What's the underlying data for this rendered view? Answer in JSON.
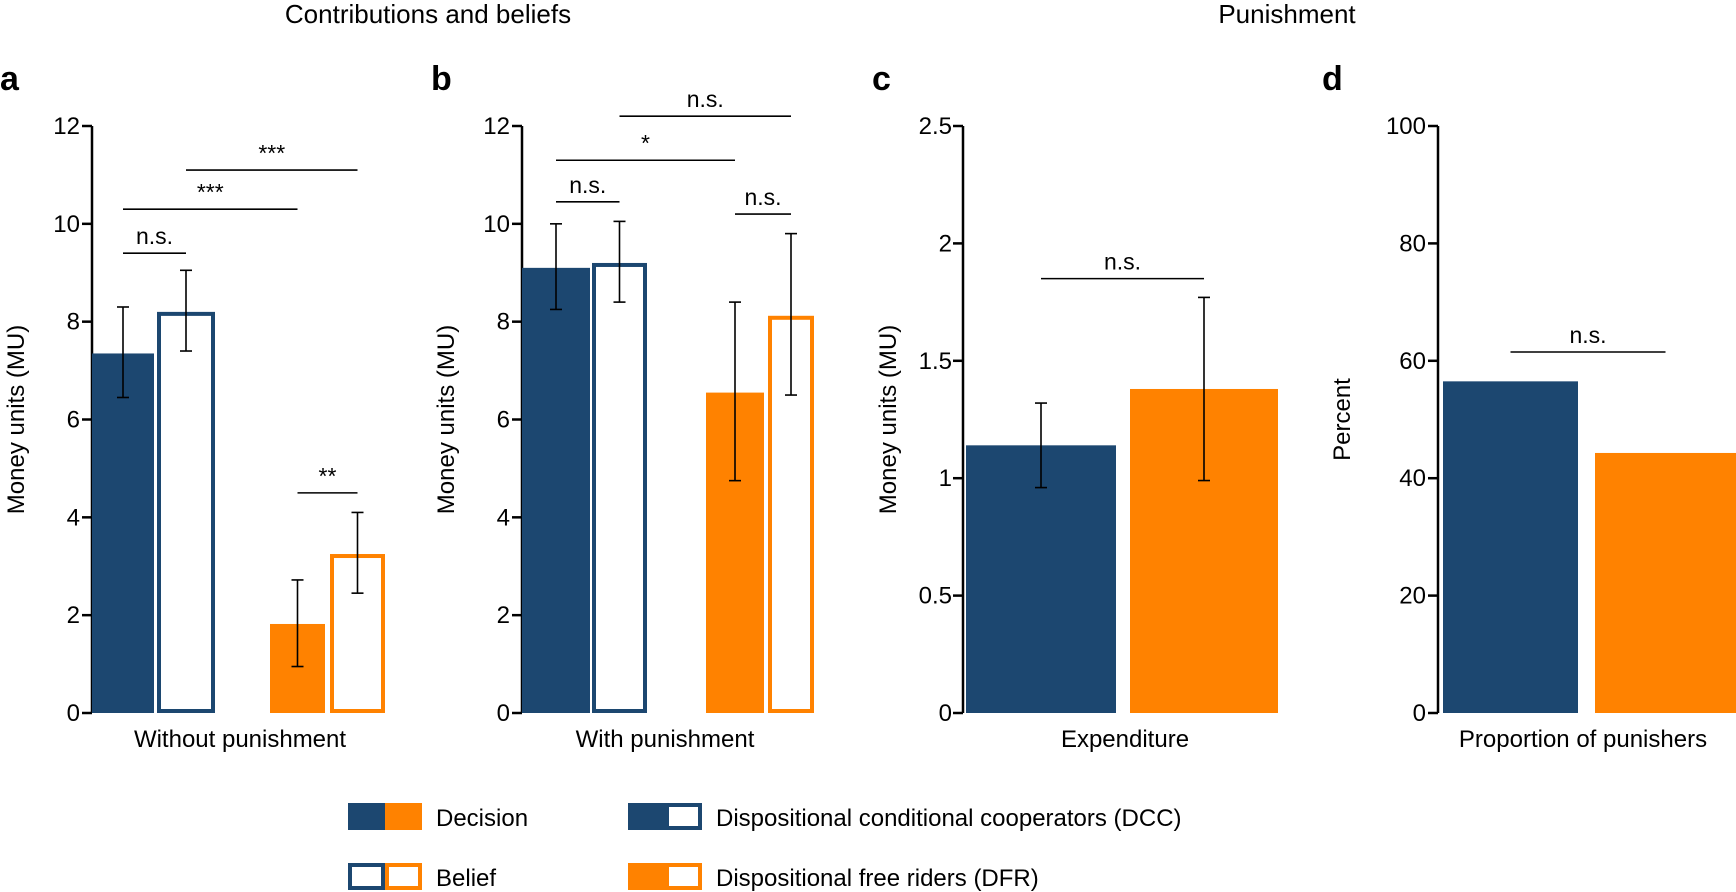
{
  "colors": {
    "dcc": "#1c4770",
    "dfr": "#ff8200",
    "axis": "#000000",
    "bg": "#ffffff"
  },
  "headers": {
    "left": "Contributions and beliefs",
    "right": "Punishment"
  },
  "chart_data": [
    {
      "panel": "a",
      "type": "bar",
      "xlabel": "Without punishment",
      "ylabel": "Money units (MU)",
      "ylim": [
        0,
        12
      ],
      "yticks": [
        0,
        2,
        4,
        6,
        8,
        10,
        12
      ],
      "bars": [
        {
          "group": "DCC",
          "kind": "Decision",
          "value": 7.35,
          "err_low": 6.45,
          "err_high": 8.3
        },
        {
          "group": "DCC",
          "kind": "Belief",
          "value": 8.2,
          "err_low": 7.4,
          "err_high": 9.05
        },
        {
          "group": "DFR",
          "kind": "Decision",
          "value": 1.82,
          "err_low": 0.95,
          "err_high": 2.72
        },
        {
          "group": "DFR",
          "kind": "Belief",
          "value": 3.25,
          "err_low": 2.45,
          "err_high": 4.1
        }
      ],
      "significance": [
        {
          "from": 0,
          "to": 1,
          "label": "n.s.",
          "y": 9.4
        },
        {
          "from": 0,
          "to": 2,
          "label": "***",
          "y": 10.3
        },
        {
          "from": 1,
          "to": 3,
          "label": "***",
          "y": 11.1
        },
        {
          "from": 2,
          "to": 3,
          "label": "**",
          "y": 4.5
        }
      ]
    },
    {
      "panel": "b",
      "type": "bar",
      "xlabel": "With punishment",
      "ylabel": "Money units (MU)",
      "ylim": [
        0,
        12
      ],
      "yticks": [
        0,
        2,
        4,
        6,
        8,
        10,
        12
      ],
      "bars": [
        {
          "group": "DCC",
          "kind": "Decision",
          "value": 9.1,
          "err_low": 8.25,
          "err_high": 10.0
        },
        {
          "group": "DCC",
          "kind": "Belief",
          "value": 9.2,
          "err_low": 8.4,
          "err_high": 10.05
        },
        {
          "group": "DFR",
          "kind": "Decision",
          "value": 6.55,
          "err_low": 4.75,
          "err_high": 8.4
        },
        {
          "group": "DFR",
          "kind": "Belief",
          "value": 8.12,
          "err_low": 6.5,
          "err_high": 9.8
        }
      ],
      "significance": [
        {
          "from": 0,
          "to": 1,
          "label": "n.s.",
          "y": 10.45
        },
        {
          "from": 2,
          "to": 3,
          "label": "n.s.",
          "y": 10.2
        },
        {
          "from": 0,
          "to": 2,
          "label": "*",
          "y": 11.3
        },
        {
          "from": 1,
          "to": 3,
          "label": "n.s.",
          "y": 12.2
        }
      ]
    },
    {
      "panel": "c",
      "type": "bar",
      "xlabel": "Expenditure",
      "ylabel": "Money units (MU)",
      "ylim": [
        0,
        2.5
      ],
      "yticks": [
        0,
        0.5,
        1,
        1.5,
        2,
        2.5
      ],
      "ytick_labels": [
        "0",
        "0.5",
        "1",
        "1.5",
        "2",
        "2.5"
      ],
      "bars": [
        {
          "group": "DCC",
          "kind": "Decision",
          "value": 1.14,
          "err_low": 0.96,
          "err_high": 1.32
        },
        {
          "group": "DFR",
          "kind": "Decision",
          "value": 1.38,
          "err_low": 0.99,
          "err_high": 1.77
        }
      ],
      "significance": [
        {
          "from": 0,
          "to": 1,
          "label": "n.s.",
          "y": 1.85
        }
      ]
    },
    {
      "panel": "d",
      "type": "bar",
      "xlabel": "Proportion of punishers",
      "ylabel": "Percent",
      "ylim": [
        0,
        100
      ],
      "yticks": [
        0,
        20,
        40,
        60,
        80,
        100
      ],
      "bars": [
        {
          "group": "DCC",
          "kind": "Decision",
          "value": 56.5
        },
        {
          "group": "DFR",
          "kind": "Decision",
          "value": 44.3
        }
      ],
      "significance": [
        {
          "from": 0,
          "to": 1,
          "label": "n.s.",
          "y": 61.5
        }
      ]
    }
  ],
  "legend": {
    "decision": "Decision",
    "belief": "Belief",
    "dcc": "Dispositional conditional cooperators (DCC)",
    "dfr": "Dispositional free riders (DFR)"
  }
}
